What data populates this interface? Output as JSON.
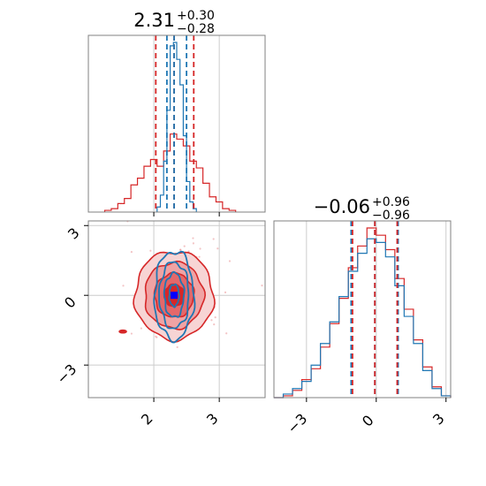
{
  "chart_data": {
    "type": "corner",
    "title": "",
    "parameters": [
      {
        "title_value": "2.31",
        "title_plus": "+0.30",
        "title_minus": "−0.28",
        "range": [
          1.0,
          3.7
        ],
        "ticks": [
          {
            "value": 2,
            "label": "2"
          },
          {
            "value": 3,
            "label": "3"
          }
        ]
      },
      {
        "title_value": "−0.06",
        "title_plus": "+0.96",
        "title_minus": "−0.96",
        "range": [
          -4.4,
          3.2
        ],
        "ticks": [
          {
            "value": -3,
            "label": "−3"
          },
          {
            "value": 0,
            "label": "0"
          },
          {
            "value": 3,
            "label": "3"
          }
        ]
      }
    ],
    "grid": true,
    "series": [
      {
        "color": "#d62728",
        "param1": {
          "quantiles": [
            2.03,
            2.31,
            2.61
          ],
          "bin_edges": [
            1.25,
            1.35,
            1.45,
            1.55,
            1.65,
            1.75,
            1.85,
            1.95,
            2.05,
            2.15,
            2.25,
            2.35,
            2.45,
            2.55,
            2.65,
            2.75,
            2.85,
            2.95,
            3.05,
            3.15,
            3.25
          ],
          "counts": [
            0.01,
            0.02,
            0.05,
            0.08,
            0.16,
            0.2,
            0.27,
            0.31,
            0.27,
            0.36,
            0.46,
            0.43,
            0.39,
            0.3,
            0.26,
            0.17,
            0.09,
            0.06,
            0.02,
            0.01
          ]
        },
        "param2": {
          "quantiles": [
            -1.02,
            -0.06,
            0.9
          ],
          "bin_edges": [
            -4.4,
            -4.0,
            -3.6,
            -3.2,
            -2.8,
            -2.4,
            -2.0,
            -1.6,
            -1.2,
            -0.8,
            -0.4,
            0.0,
            0.4,
            0.8,
            1.2,
            1.6,
            2.0,
            2.4,
            2.8,
            3.2
          ],
          "counts": [
            0.0,
            0.01,
            0.04,
            0.1,
            0.16,
            0.28,
            0.41,
            0.55,
            0.72,
            0.84,
            0.94,
            0.9,
            0.82,
            0.66,
            0.49,
            0.32,
            0.17,
            0.06,
            0.01
          ]
        },
        "joint": {
          "center": [
            2.31,
            0.0
          ],
          "sigma": [
            0.3,
            0.95
          ],
          "levels": [
            0.5,
            1.0,
            1.5,
            2.0
          ]
        }
      },
      {
        "color": "#1f77b4",
        "param1": {
          "quantiles": [
            2.2,
            2.31,
            2.5
          ],
          "bin_edges": [
            2.05,
            2.1,
            2.15,
            2.2,
            2.25,
            2.3,
            2.35,
            2.4,
            2.45,
            2.5,
            2.55,
            2.6,
            2.65
          ],
          "counts": [
            0.03,
            0.1,
            0.3,
            0.6,
            0.98,
            1.0,
            0.9,
            0.75,
            0.45,
            0.18,
            0.06,
            0.02
          ]
        },
        "param2": {
          "quantiles": [
            -1.08,
            -0.06,
            0.94
          ],
          "bin_edges": [
            -4.4,
            -4.0,
            -3.6,
            -3.2,
            -2.8,
            -2.4,
            -2.0,
            -1.6,
            -1.2,
            -0.8,
            -0.4,
            0.0,
            0.4,
            0.8,
            1.2,
            1.6,
            2.0,
            2.4,
            2.8,
            3.2
          ],
          "counts": [
            0.0,
            0.02,
            0.05,
            0.09,
            0.18,
            0.3,
            0.42,
            0.56,
            0.7,
            0.8,
            0.88,
            0.86,
            0.78,
            0.62,
            0.45,
            0.3,
            0.15,
            0.05,
            0.01
          ]
        },
        "joint": {
          "center": [
            2.31,
            0.0
          ],
          "sigma": [
            0.15,
            0.95
          ],
          "levels": [
            0.5,
            1.0,
            1.5,
            2.0
          ]
        }
      }
    ],
    "best_fit_marker": {
      "color": "#0000ff",
      "x": 2.31,
      "y": 0.0
    }
  }
}
